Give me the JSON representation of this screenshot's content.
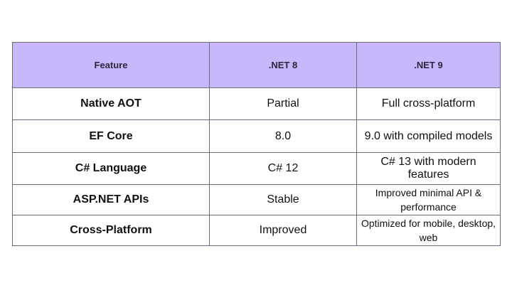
{
  "table": {
    "headers": {
      "feature": "Feature",
      "net8": ".NET 8",
      "net9": ".NET 9"
    },
    "rows": [
      {
        "feature": "Native AOT",
        "net8": "Partial",
        "net9": "Full cross-platform"
      },
      {
        "feature": "EF Core",
        "net8": "8.0",
        "net9": "9.0 with compiled models"
      },
      {
        "feature": "C# Language",
        "net8": "C# 12",
        "net9": "C# 13 with modern features"
      },
      {
        "feature": "ASP.NET APIs",
        "net8": "Stable",
        "net9": "Improved minimal API & performance"
      },
      {
        "feature": "Cross-Platform",
        "net8": "Improved",
        "net9": "Optimized for mobile, desktop, web"
      }
    ]
  },
  "colors": {
    "header_background": "#c9b7fb",
    "border": "#6a6a7a"
  }
}
